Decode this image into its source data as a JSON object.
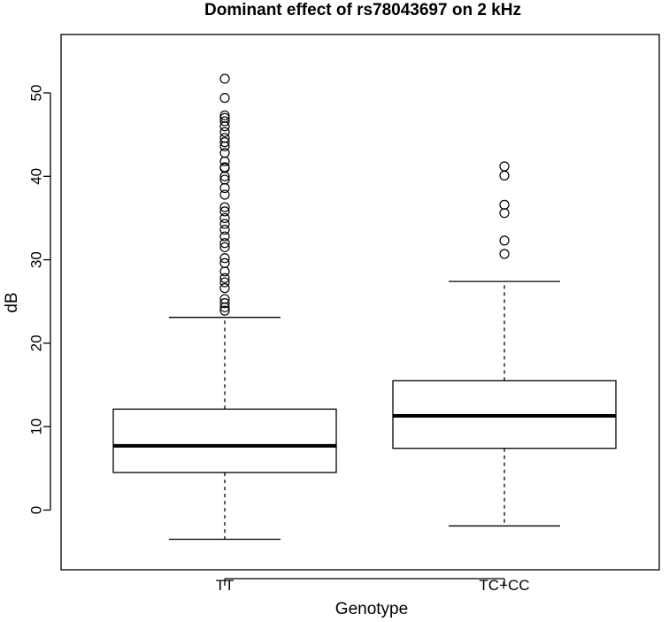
{
  "chart_data": {
    "type": "boxplot",
    "title": "Dominant effect of rs78043697 on 2 kHz",
    "xlabel": "Genotype",
    "ylabel": "dB",
    "ylim": [
      -7,
      56
    ],
    "yticks": [
      0,
      10,
      20,
      30,
      40,
      50
    ],
    "categories": [
      "TT",
      "TC+CC"
    ],
    "boxes": [
      {
        "name": "TT",
        "whisker_low": -3.5,
        "q1": 4.5,
        "median": 7.7,
        "q3": 12.1,
        "whisker_high": 23.1,
        "outliers": [
          23.9,
          24.3,
          24.8,
          25.3,
          26.6,
          27.3,
          27.8,
          28.6,
          29.6,
          30.2,
          31.5,
          32.0,
          32.8,
          33.6,
          34.3,
          35.0,
          35.8,
          36.3,
          37.8,
          38.6,
          39.6,
          40.0,
          41.0,
          41.1,
          41.8,
          42.8,
          43.6,
          44.1,
          44.6,
          45.3,
          46.0,
          46.6,
          47.0,
          47.3,
          49.4,
          51.7
        ]
      },
      {
        "name": "TC+CC",
        "whisker_low": -1.9,
        "q1": 7.4,
        "median": 11.3,
        "q3": 15.5,
        "whisker_high": 27.4,
        "outliers": [
          30.7,
          32.3,
          35.6,
          36.6,
          40.1,
          41.2
        ]
      }
    ]
  }
}
